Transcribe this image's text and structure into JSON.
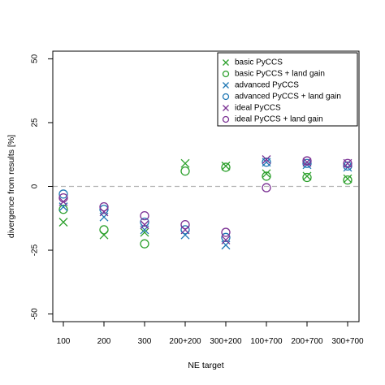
{
  "chart_data": {
    "type": "scatter",
    "xlabel": "NE target",
    "ylabel": "divergence from results [%]",
    "categories": [
      "100",
      "200",
      "300",
      "200+200",
      "300+200",
      "100+700",
      "200+700",
      "300+700"
    ],
    "ylim": [
      -53,
      53
    ],
    "yticks": [
      50,
      25,
      0,
      -25,
      -50
    ],
    "reference_line": {
      "y": 0,
      "style": "dashed",
      "color": "#b3b3b3"
    },
    "grid": false,
    "legend_position": "top-right",
    "series": [
      {
        "name": "basic PyCCS",
        "marker": "cross",
        "color": "#2ca02c",
        "values": [
          -14,
          -19,
          -18,
          9,
          8,
          5,
          4,
          3
        ]
      },
      {
        "name": "basic PyCCS + land gain",
        "marker": "circle",
        "color": "#2ca02c",
        "values": [
          -9,
          -17,
          -22.5,
          6,
          7.5,
          4,
          3.5,
          2.5
        ]
      },
      {
        "name": "advanced PyCCS",
        "marker": "cross",
        "color": "#1f77b4",
        "values": [
          -8,
          -12,
          -17,
          -19,
          -23,
          9.5,
          8.5,
          7.5
        ]
      },
      {
        "name": "advanced PyCCS + land gain",
        "marker": "circle",
        "color": "#1f77b4",
        "values": [
          -3,
          -9,
          -14,
          -17,
          -20,
          9.5,
          9,
          8
        ]
      },
      {
        "name": "ideal PyCCS",
        "marker": "cross",
        "color": "#7b3294",
        "values": [
          -6,
          -10,
          -15,
          -17,
          -21,
          10.5,
          9.5,
          9
        ]
      },
      {
        "name": "ideal PyCCS + land gain",
        "marker": "circle",
        "color": "#7b3294",
        "values": [
          -4.5,
          -8,
          -11.5,
          -15,
          -18,
          -0.5,
          10,
          9
        ]
      }
    ]
  }
}
